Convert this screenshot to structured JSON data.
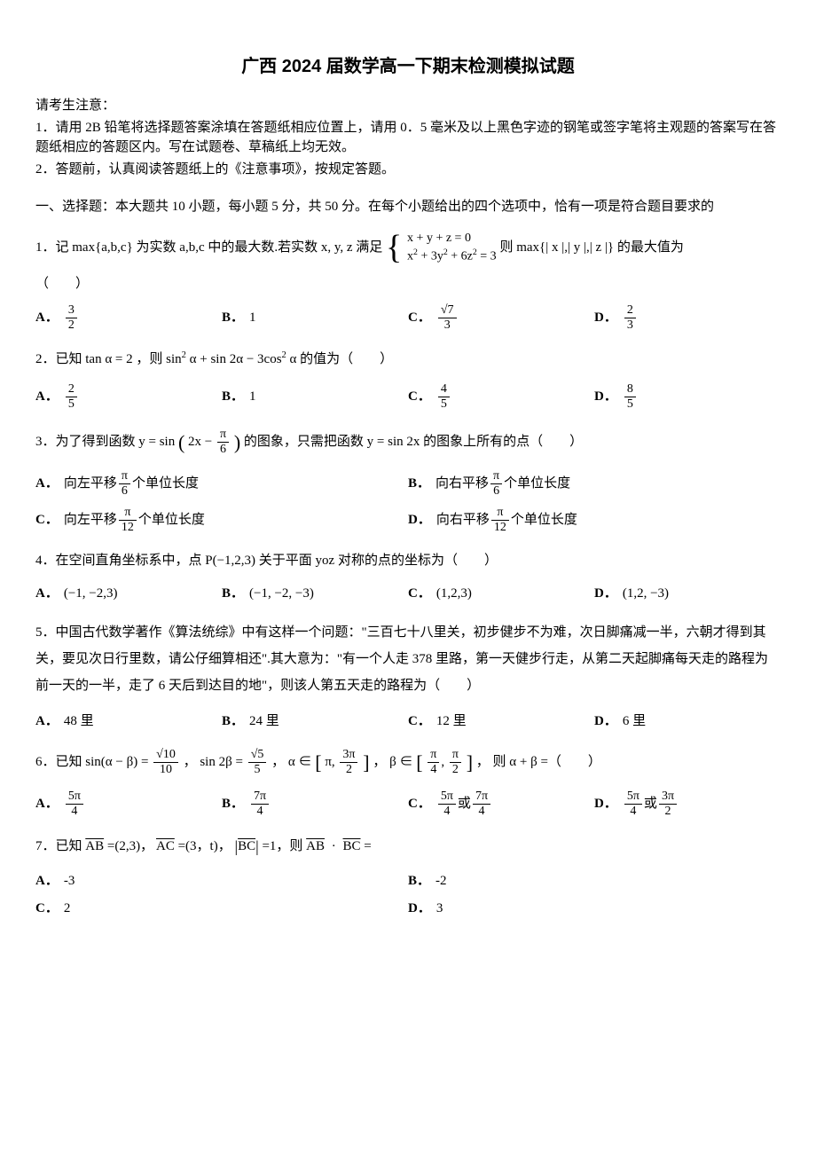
{
  "title": "广西 2024 届数学高一下期末检测模拟试题",
  "instructions": {
    "head": "请考生注意：",
    "line1": "1．请用 2B 铅笔将选择题答案涂填在答题纸相应位置上，请用 0．5 毫米及以上黑色字迹的钢笔或签字笔将主观题的答案写在答题纸相应的答题区内。写在试题卷、草稿纸上均无效。",
    "line2": "2．答题前，认真阅读答题纸上的《注意事项》，按规定答题。"
  },
  "section1": "一、选择题：本大题共 10 小题，每小题 5 分，共 50 分。在每个小题给出的四个选项中，恰有一项是符合题目要求的",
  "q1": {
    "pre": "1．记 max{a,b,c} 为实数 a,b,c 中的最大数.若实数 x, y, z 满足",
    "eq1": "x + y + z = 0",
    "eq2_lhs": "x",
    "eq2_rhs": " + 3y",
    "eq2_rhs2": " + 6z",
    "eq2_eq": " = 3",
    "post": "则 max{| x |,| y |,| z |} 的最大值为",
    "blank": "（　　）",
    "a_num": "3",
    "a_den": "2",
    "b": "1",
    "c_num": "√7",
    "c_den": "3",
    "d_num": "2",
    "d_den": "3"
  },
  "q2": {
    "stem_pre": "2．已知 tan α = 2 ，则 sin",
    "stem_mid": " α + sin 2α − 3cos",
    "stem_post": " α 的值为（　　）",
    "a_num": "2",
    "a_den": "5",
    "b": "1",
    "c_num": "4",
    "c_den": "5",
    "d_num": "8",
    "d_den": "5"
  },
  "q3": {
    "stem_pre": "3．为了得到函数 y = sin",
    "stem_inner_pre": "2x − ",
    "stem_inner_num": "π",
    "stem_inner_den": "6",
    "stem_post": " 的图象，只需把函数 y = sin 2x 的图象上所有的点（　　）",
    "a_pre": "向左平移 ",
    "a_num": "π",
    "a_den": "6",
    "a_post": " 个单位长度",
    "b_pre": "向右平移 ",
    "b_num": "π",
    "b_den": "6",
    "b_post": " 个单位长度",
    "c_pre": "向左平移 ",
    "c_num": "π",
    "c_den": "12",
    "c_post": " 个单位长度",
    "d_pre": "向右平移 ",
    "d_num": "π",
    "d_den": "12",
    "d_post": " 个单位长度"
  },
  "q4": {
    "stem": "4．在空间直角坐标系中，点 P(−1,2,3) 关于平面 yoz 对称的点的坐标为（　　）",
    "a": "(−1, −2,3)",
    "b": "(−1, −2, −3)",
    "c": "(1,2,3)",
    "d": "(1,2, −3)"
  },
  "q5": {
    "stem": "5．中国古代数学著作《算法统综》中有这样一个问题：\"三百七十八里关，初步健步不为难，次日脚痛减一半，六朝才得到其关，要见次日行里数，请公仔细算相还\".其大意为：\"有一个人走 378 里路，第一天健步行走，从第二天起脚痛每天走的路程为前一天的一半，走了 6 天后到达目的地\"，则该人第五天走的路程为（　　）",
    "a": "48 里",
    "b": "24 里",
    "c": "12 里",
    "d": "6 里"
  },
  "q6": {
    "stem_pre": "6．已知 sin(α − β) = ",
    "f1_num": "√10",
    "f1_den": "10",
    "stem_mid1": "， sin 2β = ",
    "f2_num": "√5",
    "f2_den": "5",
    "stem_mid2": "， α ∈",
    "r1_lo": "π",
    "r1_hi_num": "3π",
    "r1_hi_den": "2",
    "stem_mid3": "， β ∈",
    "r2_lo_num": "π",
    "r2_lo_den": "4",
    "r2_hi_num": "π",
    "r2_hi_den": "2",
    "stem_post": "， 则 α + β =（　　）",
    "a_num": "5π",
    "a_den": "4",
    "b_num": "7π",
    "b_den": "4",
    "c1_num": "5π",
    "c1_den": "4",
    "c_or": " 或 ",
    "c2_num": "7π",
    "c2_den": "4",
    "d1_num": "5π",
    "d1_den": "4",
    "d_or": " 或 ",
    "d2_num": "3π",
    "d2_den": "2"
  },
  "q7": {
    "stem_pre": "7．已知 ",
    "ab": "AB",
    "ab_val": " =(2,3)， ",
    "ac": "AC",
    "ac_val": " =(3，t)， ",
    "bc1": "BC",
    "bc1_val": " =1，则 ",
    "ab2": "AB",
    "dot": " · ",
    "bc2": "BC",
    "eq": " =",
    "a": "-3",
    "b": "-2",
    "c": "2",
    "d": "3"
  },
  "labels": {
    "A": "A．",
    "B": "B．",
    "C": "C．",
    "D": "D．"
  }
}
